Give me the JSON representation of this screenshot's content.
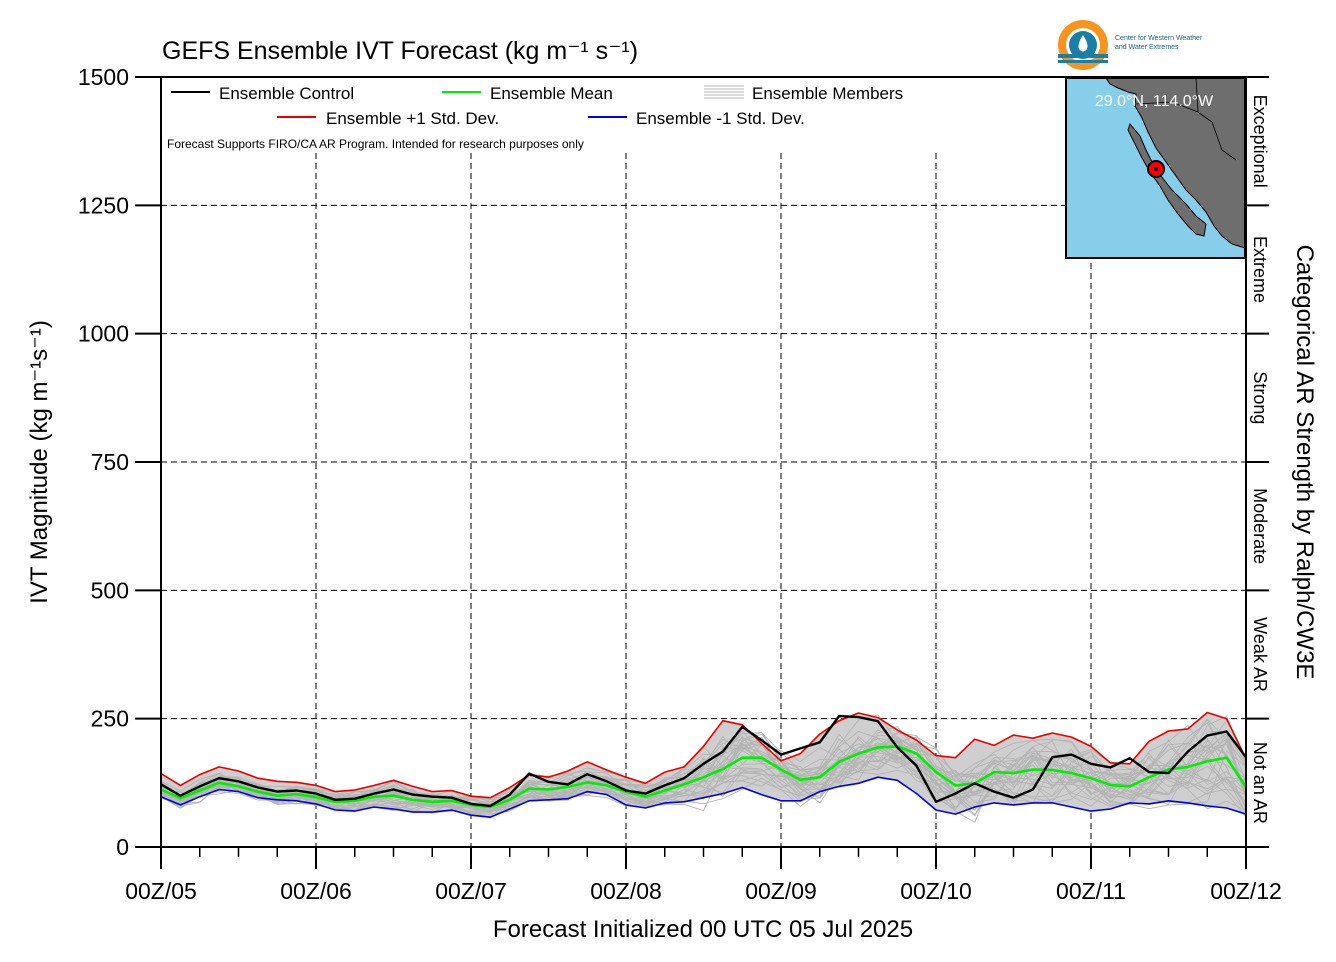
{
  "chart_data": {
    "type": "line",
    "title": "GEFS Ensemble IVT Forecast (kg m⁻¹ s⁻¹)",
    "xlabel": "Forecast Initialized 00 UTC 05 Jul 2025",
    "ylabel": "IVT Magnitude (kg m⁻¹s⁻¹)",
    "right_label": "Categorical AR Strength by Ralph/CW3E",
    "note": "Forecast Supports FIRO/CA AR Program. Intended for research purposes only",
    "ylim": [
      0,
      1500
    ],
    "xlim": [
      0,
      168
    ],
    "y_ticks": [
      0,
      250,
      500,
      750,
      1000,
      1250,
      1500
    ],
    "x_tick_labels": [
      "00Z/05",
      "00Z/06",
      "00Z/07",
      "00Z/08",
      "00Z/09",
      "00Z/10",
      "00Z/11",
      "00Z/12"
    ],
    "x_tick_hours": [
      0,
      24,
      48,
      72,
      96,
      120,
      144,
      168
    ],
    "x_units": "forecast hour",
    "grid": true,
    "legend_position": "top-left",
    "categories_right": [
      {
        "label": "Not an AR",
        "range": [
          0,
          250
        ]
      },
      {
        "label": "Weak AR",
        "range": [
          250,
          500
        ]
      },
      {
        "label": "Moderate",
        "range": [
          500,
          750
        ]
      },
      {
        "label": "Strong",
        "range": [
          750,
          1000
        ]
      },
      {
        "label": "Extreme",
        "range": [
          1000,
          1250
        ]
      },
      {
        "label": "Exceptional",
        "range": [
          1250,
          1500
        ]
      }
    ],
    "location_label": "29.0°N, 114.0°W",
    "logo_text": [
      "Center for Western Weather",
      "and Water Extremes"
    ],
    "series": [
      {
        "name": "Ensemble Control",
        "color": "#000000",
        "x": [
          0,
          3,
          6,
          9,
          12,
          15,
          18,
          21,
          24,
          27,
          30,
          33,
          36,
          39,
          42,
          45,
          48,
          51,
          54,
          57,
          60,
          63,
          66,
          69,
          72,
          75,
          78,
          81,
          84,
          87,
          90,
          93,
          96,
          99,
          102,
          105,
          108,
          111,
          114,
          117,
          120,
          123,
          126,
          129,
          132,
          135,
          138,
          141,
          144,
          147,
          150,
          153,
          156,
          159,
          162,
          165,
          168
        ],
        "values": [
          122,
          100,
          118,
          134,
          128,
          116,
          108,
          110,
          104,
          92,
          94,
          104,
          112,
          102,
          98,
          96,
          84,
          80,
          102,
          143,
          127,
          122,
          142,
          128,
          110,
          104,
          120,
          134,
          162,
          186,
          234,
          208,
          180,
          192,
          204,
          255,
          253,
          245,
          194,
          158,
          88,
          104,
          124,
          108,
          96,
          112,
          175,
          180,
          162,
          155,
          173,
          146,
          144,
          186,
          217,
          225,
          175
        ]
      },
      {
        "name": "Ensemble Mean",
        "color": "#00ee00",
        "x": [
          0,
          3,
          6,
          9,
          12,
          15,
          18,
          21,
          24,
          27,
          30,
          33,
          36,
          39,
          42,
          45,
          48,
          51,
          54,
          57,
          60,
          63,
          66,
          69,
          72,
          75,
          78,
          81,
          84,
          87,
          90,
          93,
          96,
          99,
          102,
          105,
          108,
          111,
          114,
          117,
          120,
          123,
          126,
          129,
          132,
          135,
          138,
          141,
          144,
          147,
          150,
          153,
          156,
          159,
          162,
          165,
          168
        ],
        "values": [
          112,
          95,
          110,
          125,
          118,
          108,
          100,
          103,
          97,
          88,
          90,
          98,
          100,
          92,
          88,
          90,
          82,
          78,
          92,
          114,
          112,
          117,
          126,
          120,
          108,
          98,
          110,
          122,
          136,
          152,
          174,
          174,
          151,
          131,
          136,
          166,
          182,
          194,
          196,
          182,
          146,
          120,
          124,
          146,
          144,
          151,
          150,
          144,
          134,
          121,
          118,
          136,
          151,
          156,
          167,
          174,
          117
        ]
      },
      {
        "name": "Ensemble +1 Std. Dev.",
        "color": "#e60000",
        "x": [
          0,
          3,
          6,
          9,
          12,
          15,
          18,
          21,
          24,
          27,
          30,
          33,
          36,
          39,
          42,
          45,
          48,
          51,
          54,
          57,
          60,
          63,
          66,
          69,
          72,
          75,
          78,
          81,
          84,
          87,
          90,
          93,
          96,
          99,
          102,
          105,
          108,
          111,
          114,
          117,
          120,
          123,
          126,
          129,
          132,
          135,
          138,
          141,
          144,
          147,
          150,
          153,
          156,
          159,
          162,
          165,
          168
        ],
        "values": [
          143,
          120,
          141,
          156,
          148,
          134,
          128,
          126,
          120,
          108,
          111,
          120,
          130,
          118,
          108,
          110,
          99,
          96,
          116,
          140,
          136,
          148,
          166,
          150,
          136,
          124,
          146,
          156,
          196,
          246,
          238,
          202,
          168,
          182,
          220,
          246,
          261,
          252,
          228,
          208,
          178,
          174,
          210,
          198,
          218,
          212,
          222,
          214,
          196,
          164,
          162,
          206,
          226,
          230,
          262,
          250,
          172
        ]
      },
      {
        "name": "Ensemble -1 Std. Dev.",
        "color": "#0000ee",
        "x": [
          0,
          3,
          6,
          9,
          12,
          15,
          18,
          21,
          24,
          27,
          30,
          33,
          36,
          39,
          42,
          45,
          48,
          51,
          54,
          57,
          60,
          63,
          66,
          69,
          72,
          75,
          78,
          81,
          84,
          87,
          90,
          93,
          96,
          99,
          102,
          105,
          108,
          111,
          114,
          117,
          120,
          123,
          126,
          129,
          132,
          135,
          138,
          141,
          144,
          147,
          150,
          153,
          156,
          159,
          162,
          165,
          168
        ],
        "values": [
          98,
          82,
          98,
          112,
          108,
          96,
          92,
          90,
          84,
          72,
          70,
          78,
          74,
          68,
          68,
          72,
          62,
          58,
          74,
          90,
          92,
          94,
          108,
          102,
          82,
          76,
          86,
          88,
          96,
          104,
          116,
          102,
          90,
          90,
          108,
          118,
          124,
          136,
          130,
          104,
          72,
          64,
          78,
          86,
          82,
          86,
          86,
          78,
          70,
          74,
          86,
          84,
          90,
          86,
          80,
          76,
          64
        ]
      },
      {
        "name": "Ensemble Members",
        "color": "#b4b4b4"
      }
    ]
  }
}
